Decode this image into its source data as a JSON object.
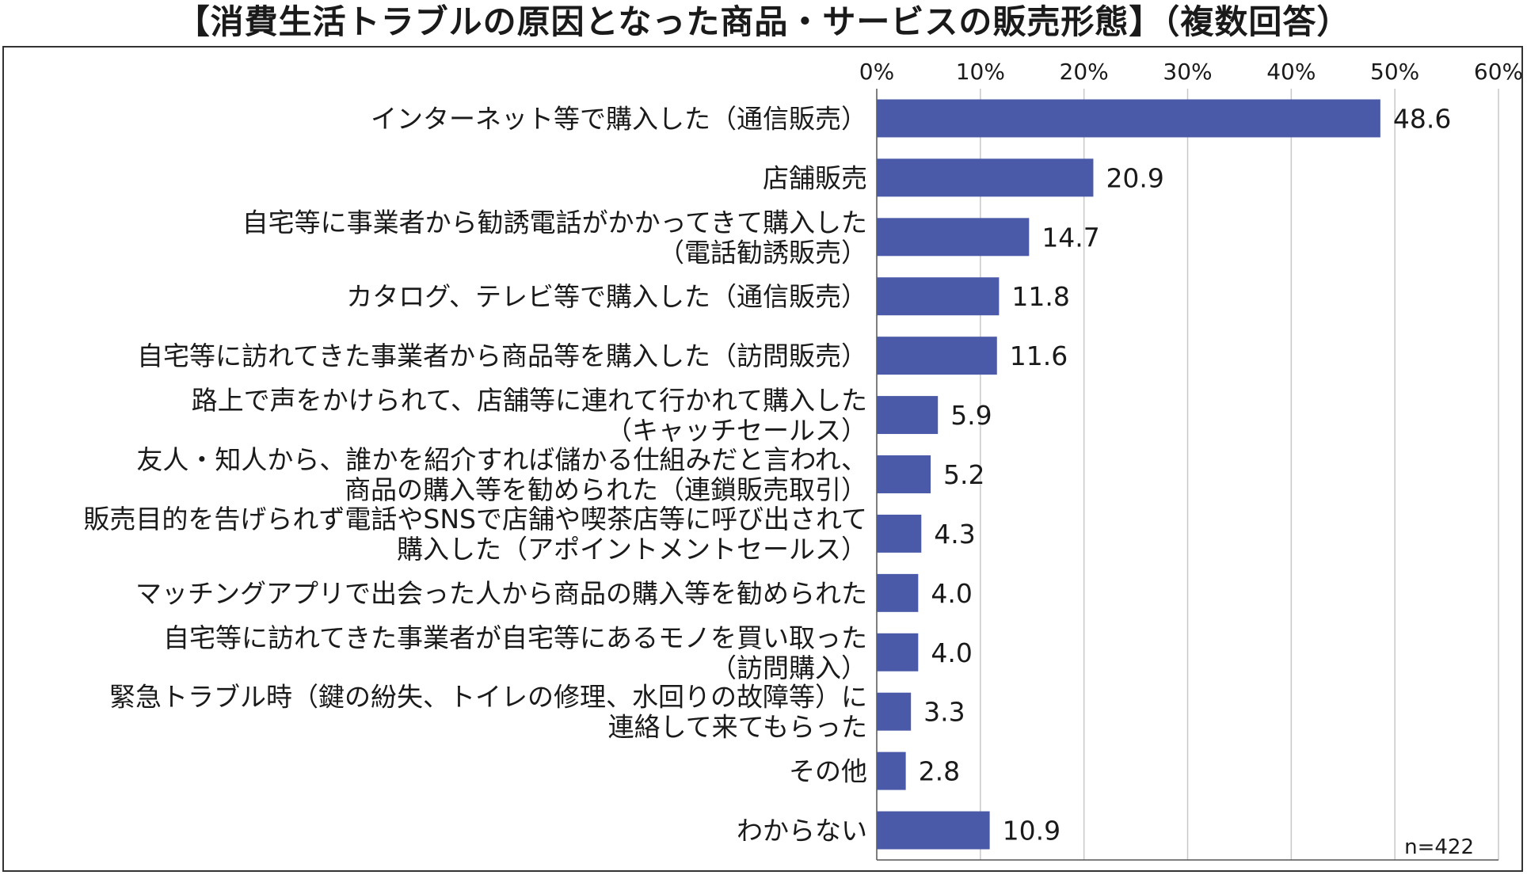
{
  "title": "【消費生活トラブルの原因となった商品・サービスの販売形態】（複数回答）",
  "note": "n=422",
  "colors": {
    "bar": "#4a5aa8",
    "grid": "#c8c8c8",
    "axis": "#555555"
  },
  "chart_data": {
    "type": "bar",
    "orientation": "horizontal",
    "title": "【消費生活トラブルの原因となった商品・サービスの販売形態】（複数回答）",
    "xlim": [
      0,
      60
    ],
    "ticks": [
      "0%",
      "10%",
      "20%",
      "30%",
      "40%",
      "50%",
      "60%"
    ],
    "grid": true,
    "categories": [
      [
        "インターネット等で購入した（通信販売）"
      ],
      [
        "店舗販売"
      ],
      [
        "自宅等に事業者から勧誘電話がかかってきて購入した",
        "（電話勧誘販売）"
      ],
      [
        "カタログ、テレビ等で購入した（通信販売）"
      ],
      [
        "自宅等に訪れてきた事業者から商品等を購入した（訪問販売）"
      ],
      [
        "路上で声をかけられて、店舗等に連れて行かれて購入した",
        "（キャッチセールス）"
      ],
      [
        "友人・知人から、誰かを紹介すれば儲かる仕組みだと言われ、",
        "商品の購入等を勧められた（連鎖販売取引）"
      ],
      [
        "販売目的を告げられず電話やSNSで店舗や喫茶店等に呼び出されて",
        "購入した（アポイントメントセールス）"
      ],
      [
        "マッチングアプリで出会った人から商品の購入等を勧められた"
      ],
      [
        "自宅等に訪れてきた事業者が自宅等にあるモノを買い取った",
        "（訪問購入）"
      ],
      [
        "緊急トラブル時（鍵の紛失、トイレの修理、水回りの故障等）に",
        "連絡して来てもらった"
      ],
      [
        "その他"
      ],
      [
        "わからない"
      ]
    ],
    "values": [
      48.6,
      20.9,
      14.7,
      11.8,
      11.6,
      5.9,
      5.2,
      4.3,
      4.0,
      4.0,
      3.3,
      2.8,
      10.9
    ],
    "labels": [
      "48.6",
      "20.9",
      "14.7",
      "11.8",
      "11.6",
      "5.9",
      "5.2",
      "4.3",
      "4.0",
      "4.0",
      "3.3",
      "2.8",
      "10.9"
    ]
  }
}
